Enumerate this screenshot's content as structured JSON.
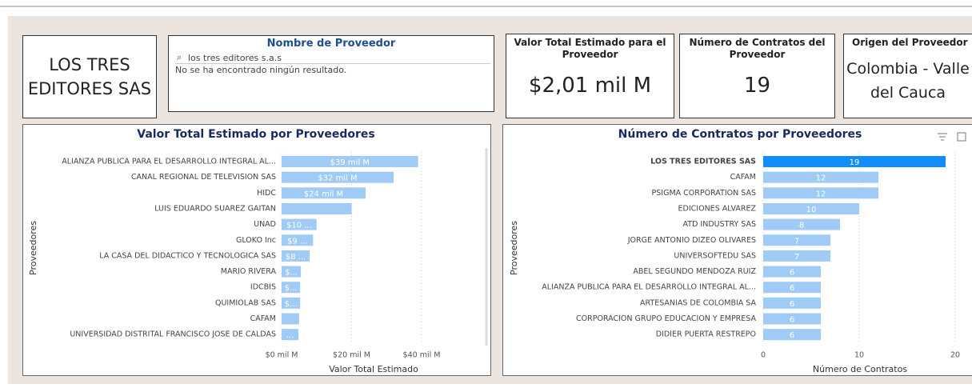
{
  "cards": {
    "provider_name": "LOS TRES EDITORES SAS",
    "slicer": {
      "title": "Nombre de Proveedor",
      "search": "los tres editores s.a.s",
      "message": "No se ha encontrado ningún resultado."
    },
    "total_value": {
      "title": "Valor Total Estimado para el Proveedor",
      "value": "$2,01 mil M"
    },
    "contracts": {
      "title": "Número de Contratos del Proveedor",
      "value": "19"
    },
    "origin": {
      "title": "Origen del Proveedor",
      "value": "Colombia - Valle del Cauca"
    }
  },
  "chart_data": [
    {
      "type": "bar_h",
      "title": "Valor Total Estimado por Proveedores",
      "x_label": "Valor Total Estimado",
      "y_label": "Proveedores",
      "categories": [
        "ALIANZA PUBLICA PARA EL DESARROLLO INTEGRAL AL...",
        "CANAL REGIONAL DE TELEVISION SAS",
        "HIDC",
        "LUIS EDUARDO SUAREZ GAITAN",
        "UNAD",
        "GLOKO Inc",
        "LA CASA DEL DIDACTICO Y TECNOLOGICA SAS",
        "MARIO RIVERA",
        "IDCBIS",
        "QUIMIOLAB SAS",
        "CAFAM",
        "UNIVERSIDAD DISTRITAL FRANCISCO JOSE DE CALDAS"
      ],
      "values": [
        39,
        32,
        24,
        20,
        10,
        9,
        8,
        5.5,
        5.3,
        5.3,
        5,
        4.8
      ],
      "value_labels": [
        "$39 mil M",
        "$32 mil M",
        "$24 mil M",
        null,
        "$10 ...",
        "$9 ...",
        "$8 ...",
        "$...",
        "$...",
        "$...",
        null,
        "..."
      ],
      "color": "#a0cbf6",
      "xlim": [
        0,
        48
      ],
      "xticks": [
        {
          "value": 0,
          "label": "$0 mil M"
        },
        {
          "value": 20,
          "label": "$20 mil M"
        },
        {
          "value": 40,
          "label": "$40 mil M"
        }
      ],
      "grid": true
    },
    {
      "type": "bar_h",
      "title": "Número de Contratos por Proveedores",
      "x_label": "Número de Contratos",
      "y_label": "Proveedores",
      "categories": [
        "LOS TRES EDITORES SAS",
        "CAFAM",
        "PSIGMA CORPORATION SAS",
        "EDICIONES ALVAREZ",
        "ATD INDUSTRY SAS",
        "JORGE ANTONIO DIZEO OLIVARES",
        "UNIVERSOFTEDU SAS",
        "ABEL SEGUNDO MENDOZA RUIZ",
        "ALIANZA PUBLICA PARA EL DESARROLLO INTEGRAL AL...",
        "ARTESANIAS DE COLOMBIA SA",
        "CORPORACION GRUPO EDUCACION Y EMPRESA",
        "DIDIER PUERTA RESTREPO"
      ],
      "values": [
        19,
        12,
        12,
        10,
        8,
        7,
        7,
        6,
        6,
        6,
        6,
        6
      ],
      "color": "#a0cbf6",
      "highlight_color": "#118dff",
      "highlight_index": 0,
      "xlim": [
        0,
        20.5
      ],
      "xticks": [
        0,
        10,
        20
      ],
      "grid": true
    }
  ]
}
